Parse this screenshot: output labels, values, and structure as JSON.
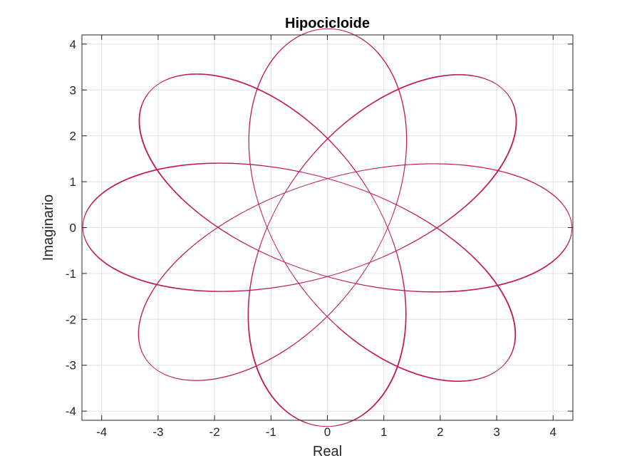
{
  "chart_data": {
    "type": "line",
    "title": "Hipocicloide",
    "xlabel": "Real",
    "ylabel": "Imaginario",
    "xlim": [
      -4.35,
      4.35
    ],
    "ylim": [
      -4.2,
      4.2
    ],
    "xticks": [
      -4,
      -3,
      -2,
      -1,
      0,
      1,
      2,
      3,
      4
    ],
    "yticks": [
      -4,
      -3,
      -2,
      -1,
      0,
      1,
      2,
      3,
      4
    ],
    "xtick_labels": [
      "-4",
      "-3",
      "-2",
      "-1",
      "0",
      "1",
      "2",
      "3",
      "4"
    ],
    "ytick_labels": [
      "-4",
      "-3",
      "-2",
      "-1",
      "0",
      "1",
      "2",
      "3",
      "4"
    ],
    "grid": true,
    "series": [
      {
        "color": "#c2185b",
        "curve": {
          "R_big": 2.667,
          "r_small": 1.0,
          "center_radius": 1.667,
          "pen_distance": 2.667,
          "t_range": [
            0,
            50.3
          ],
          "samples": 6000
        }
      }
    ]
  }
}
